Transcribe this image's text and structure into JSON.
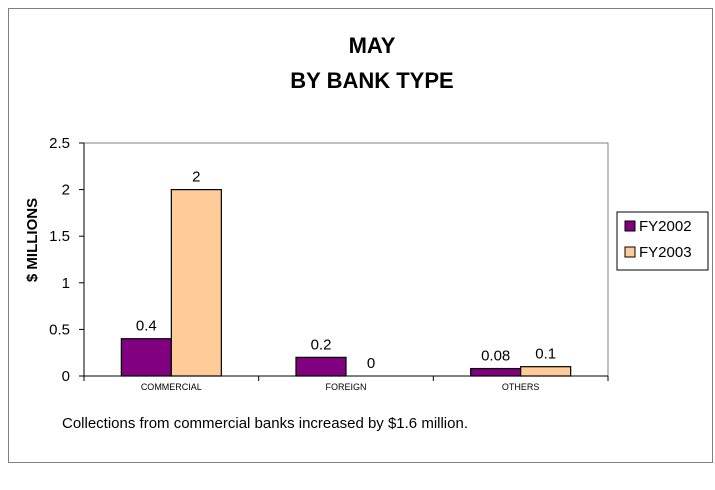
{
  "chart_data": {
    "type": "bar",
    "title_lines": [
      "MAY",
      "BY BANK TYPE"
    ],
    "xlabel": "",
    "ylabel": "$ MILLIONS",
    "ylim": [
      0,
      2.5
    ],
    "yticks": [
      "0",
      "0.5",
      "1",
      "1.5",
      "2",
      "2.5"
    ],
    "ytick_values": [
      0,
      0.5,
      1,
      1.5,
      2,
      2.5
    ],
    "categories": [
      "COMMERCIAL",
      "FOREIGN",
      "OTHERS"
    ],
    "series": [
      {
        "name": "FY2002",
        "values": [
          0.4,
          0.2,
          0.08
        ],
        "labels": [
          "0.4",
          "0.2",
          "0.08"
        ],
        "color": "#800080"
      },
      {
        "name": "FY2003",
        "values": [
          2,
          0,
          0.1
        ],
        "labels": [
          "2",
          "0",
          "0.1"
        ],
        "color": "#ffcc99"
      }
    ],
    "legend_position": "right",
    "grid": false,
    "plot_background": "#ffffff"
  },
  "caption": "Collections from commercial banks increased by $1.6 million."
}
